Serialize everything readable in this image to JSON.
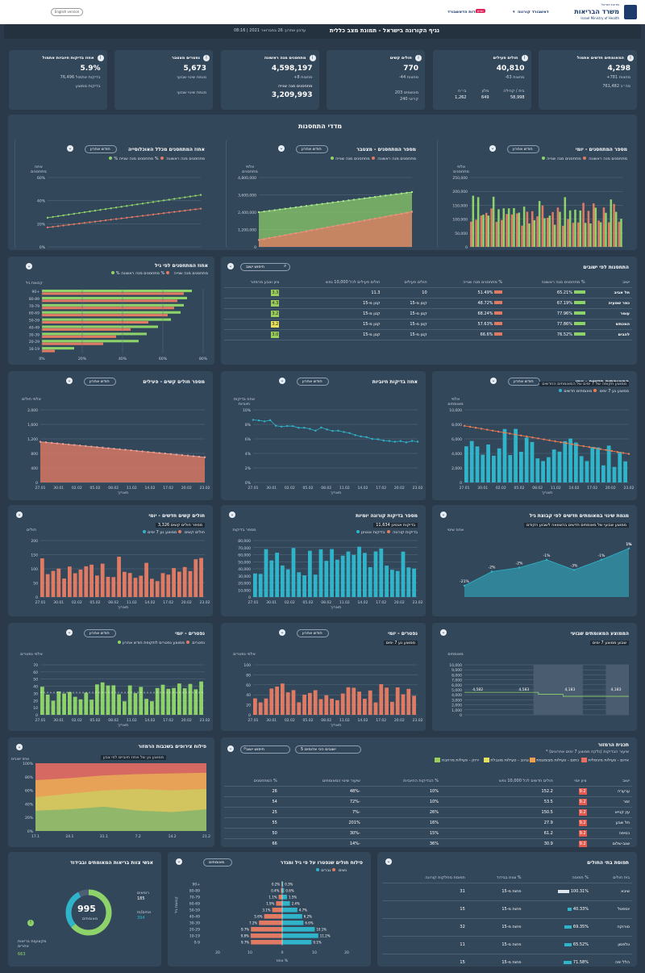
{
  "header": {
    "ministry_name": "משרד הבריאות",
    "ministry_sub": "Israel Ministry of Health",
    "ministry_top": "מדינת ישראל",
    "nav_item1": "דאשבורד קורונה",
    "nav_item2": "אודות הדאשבורד",
    "new_badge": "חדש",
    "lang_button": "English version"
  },
  "title_bar": {
    "title": "נגיף הקורונה בישראל - תמונת מצב כללית",
    "updated": "עדכון אחרון: 26 בפברואר 2021 | 08:16"
  },
  "kpis": [
    {
      "title": "המאומתים חדשים אתמול",
      "value": "4,298",
      "sub1": "+781 מחצות",
      "sub2": "סה״כ 761,482"
    },
    {
      "title": "חולים פעילים",
      "value": "40,810",
      "sub1": "-63 מחצות",
      "sub2a": "בית / קהילה",
      "sub2b": "58,998",
      "sub2c": "מלון",
      "sub2d": "649",
      "sub2e": "בי״ח",
      "sub2f": "1,262"
    },
    {
      "title": "חולים קשים",
      "value": "770",
      "sub1": "-44 מחצות",
      "sub2": "מונשמים 203",
      "sub3": "קריטי 240"
    },
    {
      "title": "מתחסנים מנה ראשונה",
      "value": "4,598,197",
      "sub1": "+8 מחצות",
      "sub2": "מתחסנים מנה שנייה",
      "value2": "3,209,993"
    },
    {
      "title": "נפטרים מצטבר",
      "value": "5,673",
      "sub1": "מגמת שינוי שבועי"
    },
    {
      "title": "אחוז בדיקות חיוביות אתמול",
      "value": "5.9%",
      "sub1": "76,496 בדיקות אתמול",
      "sub2": "בדיקות ממוצע"
    }
  ],
  "vaccination_section": {
    "title": "מדדי התחסנות",
    "charts": [
      {
        "title": "מספר המתחסנים - יומי",
        "dropdown": "חודש אחרון",
        "legend1": "מתחסנים מנה ראשונה",
        "legend2": "מתחסנים מנה שנייה",
        "xlabel": "תאריך",
        "ylabel": "אלפי מתחסנים",
        "yticks": [
          "250,000",
          "200,000",
          "150,000",
          "100,000",
          "50,000",
          "0"
        ],
        "xticks": [
          "27.01",
          "30.01",
          "03.02",
          "06.02",
          "09.02",
          "12.02",
          "15.02",
          "18.02",
          "21.02",
          "23.02"
        ]
      },
      {
        "title": "מספר המתחסנים - מצטבר",
        "dropdown": "חודש אחרון",
        "legend1": "מתחסנים מנה ראשונה",
        "legend2": "מתחסנים מנה שנייה",
        "xlabel": "תאריך",
        "ylabel": "אלפי מתחסנים",
        "yticks": [
          "4,800,000",
          "3,600,000",
          "2,400,000",
          "1,200,000",
          "0"
        ],
        "xticks": [
          "27.01",
          "30.01",
          "02.02",
          "05.02",
          "08.02",
          "11.02",
          "14.02",
          "17.02",
          "20.02",
          "23.02"
        ]
      },
      {
        "title": "אחוז המתחסנים מכלל האוכלוסייה",
        "dropdown": "חודש אחרון",
        "legend1": "% מתחסנים מנה ראשונה",
        "legend2": "% מתחסנים מנה שנייה",
        "xlabel": "תאריך",
        "ylabel": "אחוז מתחסנים",
        "yticks": [
          "60%",
          "40%",
          "20%",
          "0%"
        ],
        "xticks": [
          "27.01",
          "30.01",
          "03.02",
          "06.02",
          "09.02",
          "12.02",
          "15.02",
          "18.02",
          "21.02",
          "23.02"
        ]
      }
    ]
  },
  "age_chart": {
    "title": "אחוז המתחסנים לפי גיל",
    "legend1": "% מתחסנים מנה שנייה",
    "legend2": "% מתחסנים מנה ראשונה",
    "ylabel": "קבוצות גיל",
    "groups": [
      "90+",
      "80-89",
      "70-79",
      "60-69",
      "50-59",
      "40-49",
      "30-39",
      "20-29",
      "16-19"
    ],
    "xticks": [
      "0%",
      "20%",
      "40%",
      "60%",
      "80%"
    ]
  },
  "cities_table": {
    "title": "התחסנות לפי ישובים",
    "search": "חיפוש ישוב",
    "headers": [
      "ישוב",
      "% מתחסנים מנה ראשונה",
      "% מתחסנים מנה שנייה",
      "חולים פעילים",
      "חולים פעילים לכל 10,000 נפש",
      "ציון וצבע מרמזור"
    ],
    "rows": [
      {
        "city": "תל אביב",
        "p1": "65.21%",
        "p2": "51.49%",
        "active": "10",
        "per10k": "11.3",
        "grade": "3.3",
        "gcolor": "#9acd5c"
      },
      {
        "city": "כפר שמעיה",
        "p1": "67.19%",
        "p2": "48.72%",
        "active": "קטן מ-15",
        "per10k": "קטן מ-15",
        "grade": "4.3",
        "gcolor": "#9acd5c"
      },
      {
        "city": "עומר",
        "p1": "77.96%",
        "p2": "68.24%",
        "active": "קטן מ-15",
        "per10k": "קטן מ-15",
        "grade": "3.2",
        "gcolor": "#9acd5c"
      },
      {
        "city": "המכתש",
        "p1": "77.86%",
        "p2": "57.63%",
        "active": "קטן מ-15",
        "per10k": "קטן מ-15",
        "grade": "3.2",
        "gcolor": "#e6e05a"
      },
      {
        "city": "להבים",
        "p1": "76.52%",
        "p2": "66.6%",
        "active": "קטן מ-15",
        "per10k": "קטן מ-15",
        "grade": "3.0",
        "gcolor": "#9acd5c"
      }
    ]
  },
  "row3": [
    {
      "title": "המאומתים חדשים - יומי",
      "dropdown": "חודש אחרון",
      "legend1": "ממוצע נע 7 ימים",
      "legend2": "מאומתים חדשים",
      "legend_note": "ממוצע תקופה של 7 ימים של המאומתים החדשים",
      "xlabel": "תאריך",
      "ylabel": "אלפי מאומתים",
      "yticks": [
        "10,000",
        "8,000",
        "6,000",
        "4,000",
        "2,000",
        "0"
      ],
      "xticks": [
        "27.01",
        "30.01",
        "02.02",
        "05.02",
        "08.02",
        "11.02",
        "14.02",
        "17.02",
        "20.02",
        "23.02"
      ]
    },
    {
      "title": "אחוז בדיקות חיוביות",
      "dropdown": "חודש אחרון",
      "xlabel": "תאריך",
      "ylabel": "אחוז בדיקות חיוביות",
      "yticks": [
        "10%",
        "8%",
        "6%",
        "4%",
        "2%",
        "0%"
      ],
      "xticks": [
        "27.01",
        "30.01",
        "02.02",
        "05.02",
        "08.02",
        "11.02",
        "14.02",
        "17.02",
        "20.02",
        "23.02"
      ]
    },
    {
      "title": "מספר חולים קשים - פעילים",
      "dropdown": "חודש אחרון",
      "xlabel": "תאריך",
      "ylabel": "אלפי חולים",
      "yticks": [
        "2,000",
        "1,600",
        "1,200",
        "800",
        "400",
        "0"
      ],
      "xticks": [
        "27.01",
        "30.01",
        "02.02",
        "05.02",
        "08.02",
        "11.02",
        "14.02",
        "17.02",
        "20.02",
        "23.02"
      ]
    }
  ],
  "row4": [
    {
      "title": "מגמת שינוי במאומתים חדשים לפי קבוצת גיל",
      "note": "ממוצע שבועי של מאומתים חדשים בהשוואה לשבוע הקודם",
      "ylabel": "אחוז שינוי",
      "labels": [
        "-21%",
        "-2%",
        "-2%",
        "-1%",
        "-3%",
        "-1%",
        "1%",
        "1%"
      ],
      "xticks": [
        "18.2",
        "19.2",
        "20.2",
        "21.2",
        "22.2",
        "23.2",
        "24.2"
      ]
    },
    {
      "title": "מספר בדיקות קורונה יומיות",
      "note": "11,634 בדיקות אנטיגן",
      "legend1": "בדיקות קורונה",
      "legend2": "בדיקות אנטיגן",
      "xlabel": "תאריך",
      "ylabel": "מספר בדיקות",
      "yticks": [
        "80,000",
        "70,000",
        "60,000",
        "50,000",
        "40,000",
        "30,000",
        "20,000",
        "10,000",
        "0"
      ],
      "xticks": [
        "27.01",
        "30.01",
        "02.02",
        "05.02",
        "08.02",
        "11.02",
        "14.02",
        "17.02",
        "20.02",
        "23.02"
      ]
    },
    {
      "title": "חולים קשים חדשים - יומי",
      "note": "מספר חולים קשים 3,326",
      "legend1": "חולים קשים",
      "legend2": "ממוצע נע 7 ימים",
      "xlabel": "תאריך",
      "ylabel": "חולים",
      "yticks": [
        "200",
        "150",
        "100",
        "50",
        "0"
      ],
      "xticks": [
        "27.01",
        "30.01",
        "02.02",
        "05.02",
        "08.02",
        "11.02",
        "14.02",
        "17.02",
        "20.02",
        "23.02"
      ]
    }
  ],
  "row5": [
    {
      "title": "הממוצע המאומתים שבועי",
      "note": "שבוע ממוצע 7 ימים",
      "ylabel": "מאומתים",
      "yticks": [
        "10,000",
        "9,000",
        "8,000",
        "7,000",
        "6,000",
        "5,000",
        "4,000",
        "3,000",
        "2,000",
        "1,000",
        "0"
      ],
      "labels": [
        "4,582",
        "4,583",
        "4,183",
        "4,183"
      ]
    },
    {
      "title": "נפטרים - יומי",
      "dropdown": "חודש אחרון",
      "note": "ממוצע נע 7 ימים",
      "xlabel": "תאריך",
      "ylabel": "אלפי נפטרים",
      "yticks": [
        "100",
        "80",
        "60",
        "40",
        "20",
        "0"
      ],
      "xticks": [
        "27.01",
        "30.01",
        "02.02",
        "05.02",
        "08.02",
        "11.02",
        "14.02",
        "17.02",
        "20.02",
        "23.02"
      ]
    },
    {
      "title": "נפטרים - יומי",
      "dropdown": "חודש אחרון",
      "legend1": "נפטרים",
      "legend2": "ממוצע נפטרים לתקופת חודש אחרון",
      "xlabel": "תאריך",
      "ylabel": "אלפי נפטרים",
      "yticks": [
        "70",
        "60",
        "50",
        "40",
        "30",
        "20",
        "10",
        "0"
      ],
      "xticks": [
        "27.01",
        "30.01",
        "02.02",
        "05.02",
        "08.02",
        "11.02",
        "14.02",
        "17.02",
        "20.02",
        "23.02"
      ]
    }
  ],
  "traffic": {
    "title": "תכנית הרמזור",
    "note": "* שיעור הבדיקות (נלקח ממוצע 7 ימים אחרונים)",
    "legend": [
      "אדום - פעילות מינימלית",
      "כתום - פעילות מצומצמת",
      "צהוב - פעילות מוגבלת",
      "ירוק - פעילות מרחבת"
    ],
    "legend_colors": [
      "#e86d62",
      "#f0a04b",
      "#e6e05a",
      "#9acd5c"
    ],
    "search": "חיפוש ישוב",
    "dropdown": "5 ישובים הכי אדומים",
    "headers": [
      "ישוב",
      "ציון יומי",
      "חולים חדשים לכל 10,000 נפש",
      "% הבדיקות החיוביות",
      "שיעור שינוי המאומתים",
      "% המתחסנים"
    ],
    "rows": [
      {
        "city": "ערערה",
        "score": "9.2",
        "n": "152.2",
        "pos": "10%",
        "chg": "-48%",
        "vac": "26"
      },
      {
        "city": "זמר",
        "score": "9.2",
        "n": "53.5",
        "pos": "10%",
        "chg": "-72%",
        "vac": "54"
      },
      {
        "city": "עין קנייא",
        "score": "9.2",
        "n": "150.5",
        "pos": "26%",
        "chg": "-7%",
        "vac": "25"
      },
      {
        "city": "תל שבע",
        "score": "9.2",
        "n": "27.9",
        "pos": "16%",
        "chg": "201%",
        "vac": "55"
      },
      {
        "city": "כסיפה",
        "score": "9.2",
        "n": "61.2",
        "pos": "15%",
        "chg": "-30%",
        "vac": "50"
      },
      {
        "city": "שגב-שלום",
        "score": "9.2",
        "n": "30.9",
        "pos": "36%",
        "chg": "-14%",
        "vac": "66"
      }
    ]
  },
  "area_chart": {
    "title": "פילוח צירופים בשכבות הרמזור",
    "note": "ממוצע נע של אחוז חיוביים לפי צבע",
    "ylabel": "אחוז ישובים",
    "yticks": [
      "100%",
      "80%",
      "60%",
      "40%",
      "20%",
      "0%"
    ],
    "xticks": [
      "17.1",
      "24.1",
      "31.1",
      "7.2",
      "14.2",
      "21.2"
    ]
  },
  "staff": {
    "title": "אנשי צוות בריאות המאומתים ובבידוד",
    "value": "995",
    "sub": "מאומתים",
    "lbl1": "רופאים",
    "v1": "185",
    "lbl2": "אחים/ות",
    "v2": "394",
    "lbl3": "מקצועות בריאות אחרים",
    "v3": "663"
  },
  "pyramid": {
    "title": "פילוח חולים שנפטרו על פי גיל ומגדר",
    "dropdown": "מאומתים",
    "legend1": "נשים",
    "legend2": "גברים",
    "ylabel": "קבוצות גיל",
    "xlabel": "אחוז %",
    "groups": [
      "90+",
      "80-89",
      "70-79",
      "60-69",
      "50-59",
      "40-49",
      "30-39",
      "20-29",
      "10-19",
      "0-9"
    ],
    "left": [
      "0.2%",
      "0.4%",
      "1.1%",
      "1.9%",
      "3.1%",
      "5.6%",
      "7.2%",
      "9.7%",
      "9.8%",
      "9.7%"
    ],
    "right": [
      "0.3%",
      "0.6%",
      "1.5%",
      "2.4%",
      "4.7%",
      "6.2%",
      "6.6%",
      "10.1%",
      "11.2%",
      "9.1%"
    ],
    "xticks": [
      "20",
      "10",
      "0",
      "10",
      "20"
    ]
  },
  "hospitals": {
    "title": "תפוסת בתי החולים",
    "headers": [
      "בית חולים",
      "% תפוסה",
      "% צוות בבידוד",
      "תפוסת מחלקות קורונה"
    ],
    "rows": [
      {
        "name": "שיבא",
        "p": "100.31%",
        "staff": "פחות מ-15",
        "n": "31"
      },
      {
        "name": "יוספטל",
        "p": "40.33%",
        "staff": "פחות מ-15",
        "n": "15"
      },
      {
        "name": "סורוקה",
        "p": "69.35%",
        "staff": "פחות מ-15",
        "n": "32"
      },
      {
        "name": "וולפסון",
        "p": "65.52%",
        "staff": "פחות מ-15",
        "n": "11"
      },
      {
        "name": "הלל יפה",
        "p": "71.58%",
        "staff": "פחות מ-15",
        "n": "15"
      }
    ]
  },
  "colors": {
    "green": "#8ed36a",
    "red": "#e07a63",
    "teal": "#2fb4c9",
    "bg": "#2b3a4a",
    "card": "#33475b"
  }
}
